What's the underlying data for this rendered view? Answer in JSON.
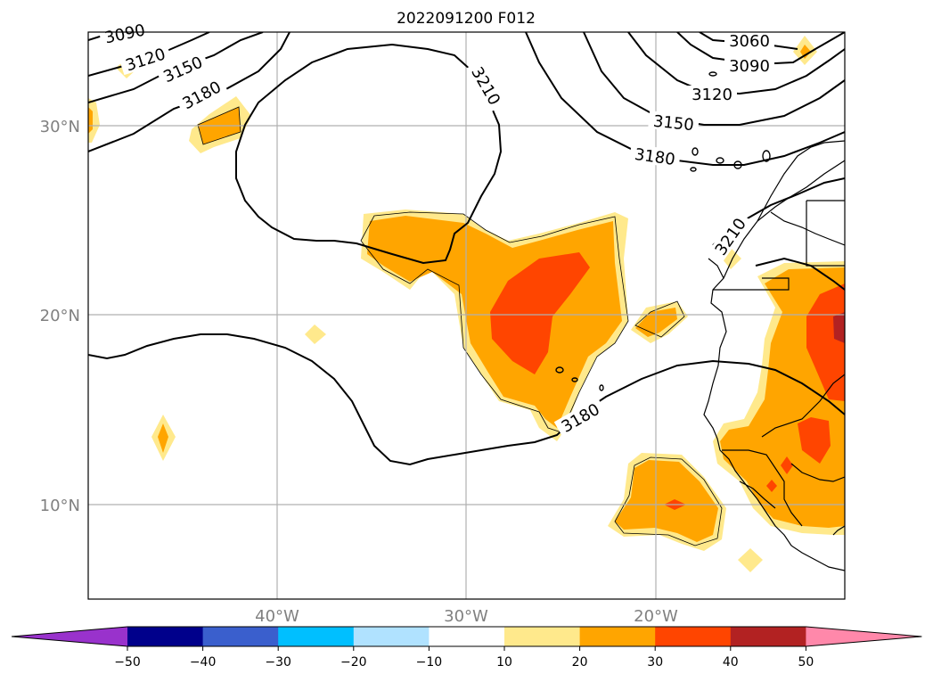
{
  "map": {
    "title": "2022091200 F012",
    "lat_labels": [
      "30°N",
      "20°N",
      "10°N"
    ],
    "lon_labels": [
      "40°W",
      "30°W",
      "20°W"
    ],
    "contour_labels": [
      "3090",
      "3120",
      "3150",
      "3180",
      "3210",
      "3060",
      "3090",
      "3120",
      "3150",
      "3180",
      "3210",
      "3180"
    ],
    "extent": {
      "lon_min": -50,
      "lon_max": -10,
      "lat_min": 5,
      "lat_max": 35
    },
    "gridlines": true
  },
  "colorbar": {
    "colors": [
      "#9932cc",
      "#00008b",
      "#3a5fcd",
      "#00bfff",
      "#b0e2ff",
      "#ffffff",
      "#ffe98c",
      "#ffa500",
      "#ff4500",
      "#b22222",
      "#ff88aa"
    ],
    "ticks": [
      "−50",
      "−40",
      "−30",
      "−20",
      "−10",
      "10",
      "20",
      "30",
      "40",
      "50"
    ],
    "extend": "both"
  }
}
